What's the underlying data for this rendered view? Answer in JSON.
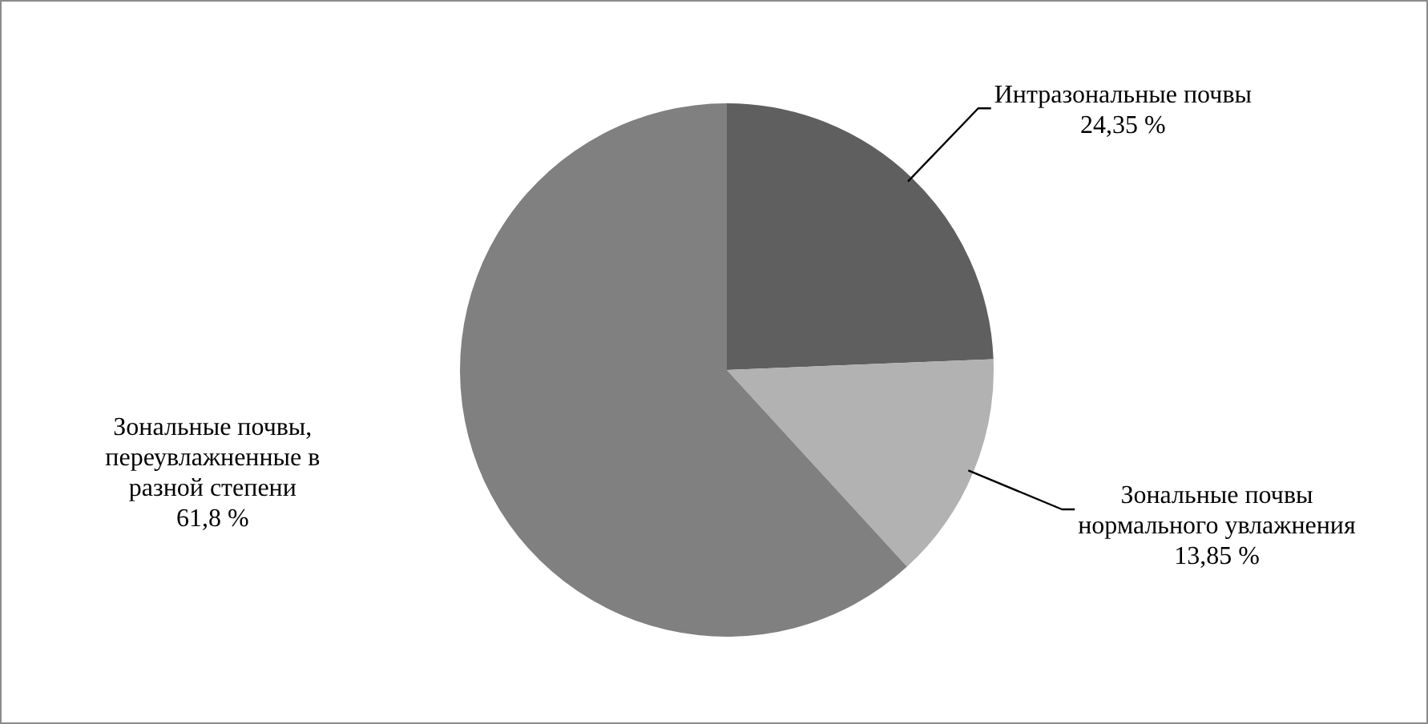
{
  "chart_data": {
    "type": "pie",
    "categories": [
      "Интразональные почвы",
      "Зональные почвы нормального увлажнения",
      "Зональные почвы, переувлажненные в разной степени"
    ],
    "values": [
      24.35,
      13.85,
      61.8
    ],
    "value_labels": [
      "24,35 %",
      "13,85 %",
      "61,8 %"
    ],
    "colors": [
      "#5f5f5f",
      "#b2b2b2",
      "#808080"
    ],
    "legend": false
  }
}
